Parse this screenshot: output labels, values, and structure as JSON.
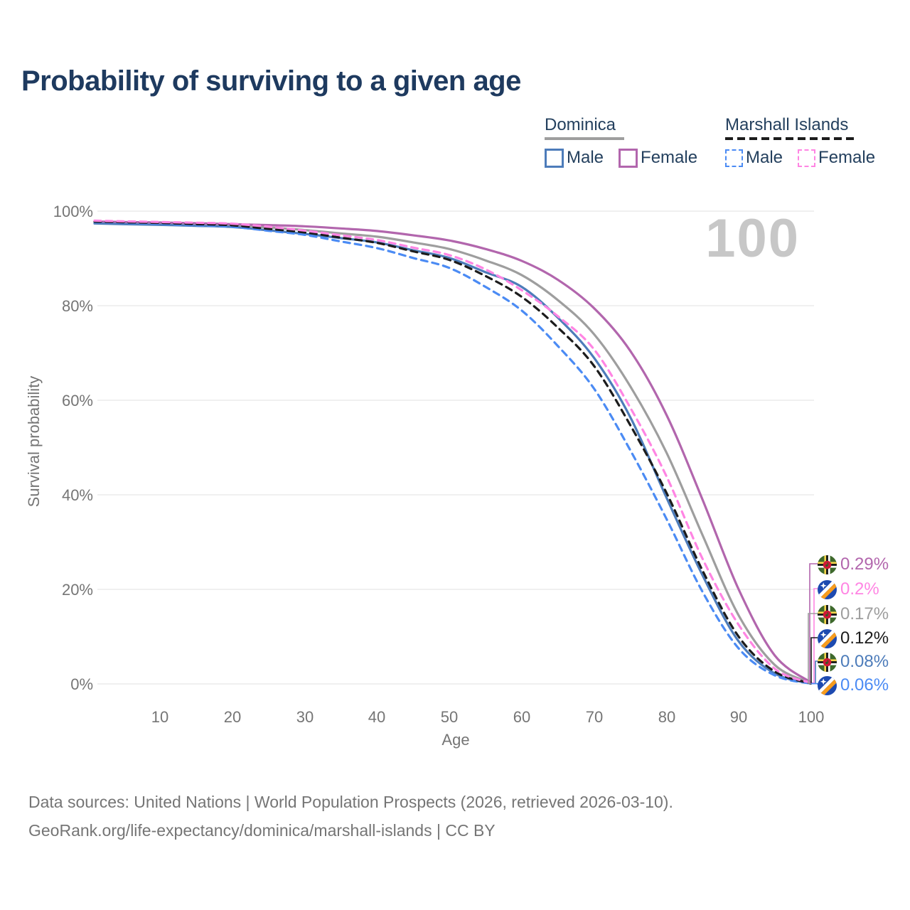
{
  "title": "Probability of surviving to a given age",
  "watermark": "100",
  "legend": {
    "groups": [
      {
        "label": "Dominica",
        "line_style": "solid",
        "underline_color": "#9e9e9e",
        "items": [
          {
            "label": "Male",
            "color": "#4d7cba"
          },
          {
            "label": "Female",
            "color": "#b266ad"
          }
        ]
      },
      {
        "label": "Marshall Islands",
        "line_style": "dashed",
        "underline_color": "#1c1c1c",
        "items": [
          {
            "label": "Male",
            "color": "#4b8bf4"
          },
          {
            "label": "Female",
            "color": "#ff85e3"
          }
        ]
      }
    ]
  },
  "axes": {
    "y_label": "Survival probability",
    "x_label": "Age",
    "y_ticks": [
      "100%",
      "80%",
      "60%",
      "40%",
      "20%",
      "0%"
    ],
    "x_ticks": [
      "10",
      "20",
      "30",
      "40",
      "50",
      "60",
      "70",
      "80",
      "90",
      "100"
    ]
  },
  "end_labels": [
    {
      "series": "dominica_female",
      "flag": "dominica",
      "value": "0.29%",
      "color": "#b266ad"
    },
    {
      "series": "marshall_female",
      "flag": "marshall",
      "value": "0.2%",
      "color": "#ff85e3"
    },
    {
      "series": "dominica_total",
      "flag": "dominica",
      "value": "0.17%",
      "color": "#9e9e9e"
    },
    {
      "series": "marshall_total",
      "flag": "marshall",
      "value": "0.12%",
      "color": "#1c1c1c"
    },
    {
      "series": "dominica_male",
      "flag": "dominica",
      "value": "0.08%",
      "color": "#4d7cba"
    },
    {
      "series": "marshall_male",
      "flag": "marshall",
      "value": "0.06%",
      "color": "#4b8bf4"
    }
  ],
  "footer": {
    "line1": "Data sources: United Nations | World Population Prospects (2026, retrieved 2026-03-10).",
    "line2": "GeoRank.org/life-expectancy/dominica/marshall-islands | CC BY"
  },
  "chart_data": {
    "type": "line",
    "title": "Probability of surviving to a given age",
    "xlabel": "Age",
    "ylabel": "Survival probability",
    "xlim": [
      1,
      100
    ],
    "ylim": [
      0,
      100
    ],
    "grid": "horizontal",
    "legend_position": "top-right",
    "x": [
      1,
      5,
      10,
      15,
      20,
      25,
      30,
      35,
      40,
      45,
      50,
      55,
      60,
      65,
      70,
      75,
      80,
      85,
      90,
      95,
      100
    ],
    "series": [
      {
        "id": "dominica_total",
        "name": "Dominica (both sexes)",
        "color": "#9e9e9e",
        "dashed": false,
        "values": [
          97.6,
          97.5,
          97.35,
          97.2,
          97.0,
          96.55,
          96.0,
          95.3,
          94.6,
          93.4,
          92.0,
          89.6,
          86.5,
          81.2,
          74.0,
          63.0,
          49.0,
          31.5,
          14.5,
          4.0,
          0.17
        ]
      },
      {
        "id": "dominica_female",
        "name": "Dominica Female",
        "color": "#b266ad",
        "dashed": false,
        "values": [
          97.8,
          97.7,
          97.6,
          97.45,
          97.25,
          97.05,
          96.8,
          96.35,
          95.8,
          94.9,
          93.8,
          92.0,
          89.5,
          85.5,
          79.5,
          70.5,
          57.0,
          39.0,
          20.0,
          6.0,
          0.29
        ]
      },
      {
        "id": "dominica_male",
        "name": "Dominica Male",
        "color": "#4d7cba",
        "dashed": false,
        "values": [
          97.4,
          97.25,
          97.1,
          96.9,
          96.65,
          95.95,
          95.2,
          94.3,
          93.4,
          91.75,
          90.1,
          87.1,
          84.0,
          77.5,
          69.0,
          56.5,
          39.5,
          23.0,
          9.0,
          2.2,
          0.08
        ]
      },
      {
        "id": "marshall_male",
        "name": "Marshall Islands Male",
        "color": "#4b8bf4",
        "dashed": true,
        "values": [
          97.7,
          97.5,
          97.3,
          97.0,
          96.7,
          95.85,
          95.0,
          93.6,
          92.2,
          90.1,
          88.0,
          84.0,
          79.0,
          71.5,
          62.5,
          49.5,
          35.0,
          19.5,
          7.5,
          1.8,
          0.06
        ]
      },
      {
        "id": "marshall_total",
        "name": "Marshall Islands (both sexes)",
        "color": "#1c1c1c",
        "dashed": true,
        "values": [
          97.8,
          97.65,
          97.5,
          97.25,
          97.0,
          96.25,
          95.5,
          94.4,
          93.3,
          91.5,
          89.7,
          86.3,
          81.9,
          75.4,
          67.3,
          54.8,
          40.5,
          24.0,
          10.0,
          2.6,
          0.12
        ]
      },
      {
        "id": "marshall_female",
        "name": "Marshall Islands Female",
        "color": "#ff85e3",
        "dashed": true,
        "values": [
          98.0,
          97.85,
          97.7,
          97.55,
          97.35,
          96.7,
          95.9,
          94.9,
          93.9,
          92.3,
          90.7,
          87.7,
          83.3,
          77.8,
          70.8,
          58.5,
          44.0,
          26.5,
          12.5,
          3.2,
          0.2
        ]
      }
    ]
  }
}
